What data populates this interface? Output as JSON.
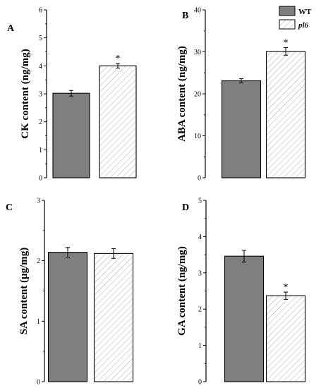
{
  "colors": {
    "wt_fill": "#7f7f7f",
    "pl6_fill": "#ffffff",
    "stroke": "#000000",
    "hatch": "#9a9a9a"
  },
  "legend": {
    "wt_label": "WT",
    "pl6_label": "pl6"
  },
  "chart_data": [
    {
      "type": "bar",
      "panel": "A",
      "ylabel": "CK content (ng/mg)",
      "ylim": [
        0,
        6
      ],
      "yticks": [
        0,
        1,
        2,
        3,
        4,
        5,
        6
      ],
      "series": [
        {
          "name": "WT",
          "value": 3.02,
          "error": 0.1,
          "significant": false
        },
        {
          "name": "pl6",
          "value": 4.0,
          "error": 0.08,
          "significant": true
        }
      ],
      "legend": false
    },
    {
      "type": "bar",
      "panel": "B",
      "ylabel": "ABA content (ng/mg)",
      "ylim": [
        0,
        40
      ],
      "yticks": [
        0,
        10,
        20,
        30,
        40
      ],
      "series": [
        {
          "name": "WT",
          "value": 23.1,
          "error": 0.5,
          "significant": false
        },
        {
          "name": "pl6",
          "value": 30.1,
          "error": 0.9,
          "significant": true
        }
      ],
      "legend": true,
      "legend_position": "top-right"
    },
    {
      "type": "bar",
      "panel": "C",
      "ylabel": "SA content (μg/mg)",
      "ylim": [
        0,
        3
      ],
      "yticks": [
        0,
        1,
        2,
        3
      ],
      "series": [
        {
          "name": "WT",
          "value": 2.14,
          "error": 0.08,
          "significant": false
        },
        {
          "name": "pl6",
          "value": 2.12,
          "error": 0.08,
          "significant": false
        }
      ],
      "legend": false
    },
    {
      "type": "bar",
      "panel": "D",
      "ylabel": "GA content (ng/mg)",
      "ylim": [
        0,
        5
      ],
      "yticks": [
        0,
        1,
        2,
        3,
        4,
        5
      ],
      "series": [
        {
          "name": "WT",
          "value": 3.46,
          "error": 0.16,
          "significant": false
        },
        {
          "name": "pl6",
          "value": 2.37,
          "error": 0.1,
          "significant": true
        }
      ],
      "legend": false
    }
  ]
}
